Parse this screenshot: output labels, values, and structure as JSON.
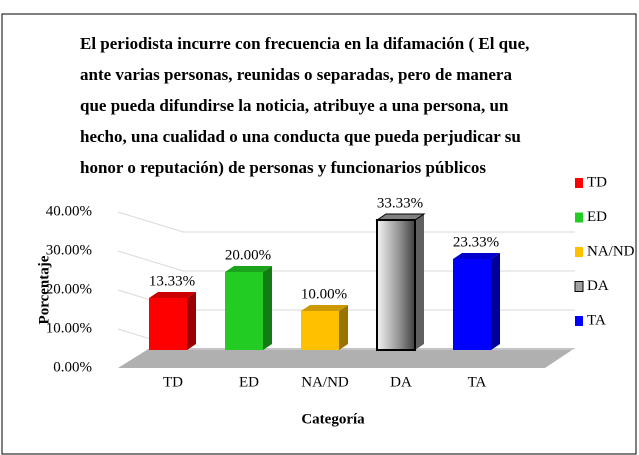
{
  "chart_data": {
    "type": "bar3d",
    "title": [
      "El periodista incurre con frecuencia en la difamación ( El que,",
      "ante varias personas, reunidas o separadas, pero de manera",
      "que pueda difundirse la noticia, atribuye a una persona, un",
      "hecho, una cualidad o una conducta que pueda perjudicar su",
      "honor o reputación) de personas y funcionarios públicos"
    ],
    "x_label": "Categoría",
    "y_label": "Porcentaje",
    "categories": [
      "TD",
      "ED",
      "NA/ND",
      "DA",
      "TA"
    ],
    "values": [
      13.33,
      20,
      10,
      33.33,
      23.33
    ],
    "value_labels": [
      "13.33%",
      "20.00%",
      "10.00%",
      "33.33%",
      "23.33%"
    ],
    "colors": [
      "#ff0000",
      "#22cc22",
      "#ffc000",
      "#a0a0a0",
      "#0000ff"
    ],
    "ylim": [
      0,
      40
    ],
    "yticks": [
      {
        "value": 0,
        "label": "0.00%"
      },
      {
        "value": 10,
        "label": "10.00%"
      },
      {
        "value": 20,
        "label": "20.00%"
      },
      {
        "value": 30,
        "label": "30.00%"
      },
      {
        "value": 40,
        "label": "40.00%"
      }
    ],
    "grid": true,
    "legend": "right"
  }
}
